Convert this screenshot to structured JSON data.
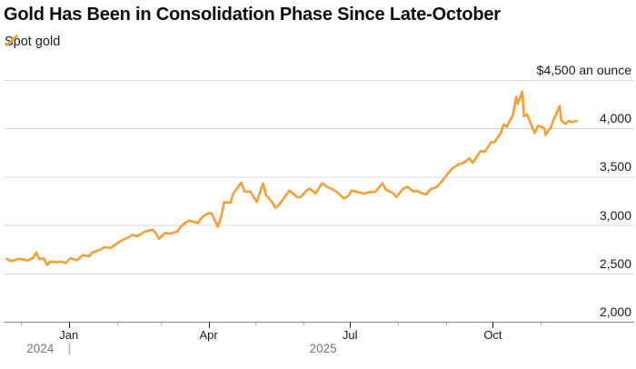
{
  "header": {
    "title": "Gold Has Been in Consolidation Phase Since Late-October",
    "legend": {
      "label": "Spot gold"
    }
  },
  "colors": {
    "line": "#F79E34",
    "gridline": "#d9d9d9",
    "baseline": "#8a8a8a",
    "minor_tick": "#b3b3b3",
    "major_tick": "#1a1a1a",
    "year_divider": "#b3b3b3",
    "title_text": "#0d0d0d",
    "axis_text": "#1a1a1a",
    "year_text": "#757575"
  },
  "chart_data": {
    "type": "line",
    "title": "Gold Has Been in Consolidation Phase Since Late-October",
    "unit_label": "$4,500 an ounce",
    "ylim": [
      2000,
      4500
    ],
    "grid": true,
    "legend_position": "top-left",
    "y_ticks": [
      {
        "value": 4500,
        "label": "$4,500 an ounce"
      },
      {
        "value": 4000,
        "label": "4,000"
      },
      {
        "value": 3500,
        "label": "3,500"
      },
      {
        "value": 3000,
        "label": "3,000"
      },
      {
        "value": 2500,
        "label": "2,500"
      },
      {
        "value": 2000,
        "label": "2,000"
      }
    ],
    "x_axis": {
      "start": "2024-11-20",
      "end": "2025-12-31"
    },
    "x_ticks": [
      {
        "date": "2024-12-01",
        "label": "",
        "major": false
      },
      {
        "date": "2025-01-01",
        "label": "Jan",
        "major": true
      },
      {
        "date": "2025-02-01",
        "label": "",
        "major": false
      },
      {
        "date": "2025-03-01",
        "label": "",
        "major": false
      },
      {
        "date": "2025-04-01",
        "label": "Apr",
        "major": true
      },
      {
        "date": "2025-05-01",
        "label": "",
        "major": false
      },
      {
        "date": "2025-06-01",
        "label": "",
        "major": false
      },
      {
        "date": "2025-07-01",
        "label": "Jul",
        "major": true
      },
      {
        "date": "2025-08-01",
        "label": "",
        "major": false
      },
      {
        "date": "2025-09-01",
        "label": "",
        "major": false
      },
      {
        "date": "2025-10-01",
        "label": "Oct",
        "major": true
      },
      {
        "date": "2025-11-01",
        "label": "",
        "major": false
      }
    ],
    "year_boundary": "2025-01-01",
    "year_labels": [
      "2024",
      "2025"
    ],
    "series": [
      {
        "name": "Spot gold",
        "color": "#F79E34",
        "points": [
          [
            "2024-11-22",
            2650
          ],
          [
            "2024-11-25",
            2626
          ],
          [
            "2024-11-27",
            2635
          ],
          [
            "2024-11-29",
            2650
          ],
          [
            "2024-12-03",
            2643
          ],
          [
            "2024-12-05",
            2632
          ],
          [
            "2024-12-09",
            2660
          ],
          [
            "2024-12-11",
            2718
          ],
          [
            "2024-12-13",
            2648
          ],
          [
            "2024-12-16",
            2653
          ],
          [
            "2024-12-18",
            2586
          ],
          [
            "2024-12-20",
            2622
          ],
          [
            "2024-12-24",
            2616
          ],
          [
            "2024-12-27",
            2621
          ],
          [
            "2024-12-30",
            2606
          ],
          [
            "2025-01-02",
            2658
          ],
          [
            "2025-01-06",
            2636
          ],
          [
            "2025-01-08",
            2662
          ],
          [
            "2025-01-10",
            2690
          ],
          [
            "2025-01-14",
            2677
          ],
          [
            "2025-01-16",
            2714
          ],
          [
            "2025-01-21",
            2744
          ],
          [
            "2025-01-24",
            2771
          ],
          [
            "2025-01-28",
            2763
          ],
          [
            "2025-01-31",
            2798
          ],
          [
            "2025-02-04",
            2842
          ],
          [
            "2025-02-07",
            2861
          ],
          [
            "2025-02-11",
            2898
          ],
          [
            "2025-02-14",
            2883
          ],
          [
            "2025-02-19",
            2933
          ],
          [
            "2025-02-24",
            2951
          ],
          [
            "2025-02-26",
            2916
          ],
          [
            "2025-02-28",
            2857
          ],
          [
            "2025-03-04",
            2918
          ],
          [
            "2025-03-07",
            2910
          ],
          [
            "2025-03-12",
            2934
          ],
          [
            "2025-03-14",
            2984
          ],
          [
            "2025-03-18",
            3035
          ],
          [
            "2025-03-20",
            3044
          ],
          [
            "2025-03-25",
            3020
          ],
          [
            "2025-03-28",
            3085
          ],
          [
            "2025-04-01",
            3124
          ],
          [
            "2025-04-03",
            3115
          ],
          [
            "2025-04-07",
            2982
          ],
          [
            "2025-04-09",
            3083
          ],
          [
            "2025-04-11",
            3238
          ],
          [
            "2025-04-15",
            3230
          ],
          [
            "2025-04-17",
            3327
          ],
          [
            "2025-04-22",
            3440
          ],
          [
            "2025-04-24",
            3349
          ],
          [
            "2025-04-28",
            3343
          ],
          [
            "2025-04-30",
            3289
          ],
          [
            "2025-05-02",
            3240
          ],
          [
            "2025-05-06",
            3431
          ],
          [
            "2025-05-08",
            3306
          ],
          [
            "2025-05-12",
            3236
          ],
          [
            "2025-05-14",
            3178
          ],
          [
            "2025-05-16",
            3203
          ],
          [
            "2025-05-20",
            3290
          ],
          [
            "2025-05-23",
            3357
          ],
          [
            "2025-05-28",
            3288
          ],
          [
            "2025-05-30",
            3289
          ],
          [
            "2025-06-03",
            3353
          ],
          [
            "2025-06-05",
            3376
          ],
          [
            "2025-06-09",
            3327
          ],
          [
            "2025-06-13",
            3432
          ],
          [
            "2025-06-17",
            3388
          ],
          [
            "2025-06-20",
            3368
          ],
          [
            "2025-06-24",
            3323
          ],
          [
            "2025-06-27",
            3274
          ],
          [
            "2025-06-30",
            3303
          ],
          [
            "2025-07-02",
            3357
          ],
          [
            "2025-07-07",
            3337
          ],
          [
            "2025-07-10",
            3324
          ],
          [
            "2025-07-14",
            3343
          ],
          [
            "2025-07-17",
            3339
          ],
          [
            "2025-07-22",
            3430
          ],
          [
            "2025-07-24",
            3368
          ],
          [
            "2025-07-29",
            3326
          ],
          [
            "2025-07-31",
            3290
          ],
          [
            "2025-08-04",
            3373
          ],
          [
            "2025-08-07",
            3397
          ],
          [
            "2025-08-11",
            3344
          ],
          [
            "2025-08-13",
            3355
          ],
          [
            "2025-08-15",
            3336
          ],
          [
            "2025-08-19",
            3316
          ],
          [
            "2025-08-22",
            3372
          ],
          [
            "2025-08-26",
            3393
          ],
          [
            "2025-08-29",
            3448
          ],
          [
            "2025-09-02",
            3533
          ],
          [
            "2025-09-05",
            3587
          ],
          [
            "2025-09-09",
            3627
          ],
          [
            "2025-09-12",
            3643
          ],
          [
            "2025-09-16",
            3690
          ],
          [
            "2025-09-18",
            3644
          ],
          [
            "2025-09-23",
            3764
          ],
          [
            "2025-09-26",
            3760
          ],
          [
            "2025-09-30",
            3858
          ],
          [
            "2025-10-02",
            3857
          ],
          [
            "2025-10-06",
            3949
          ],
          [
            "2025-10-08",
            4041
          ],
          [
            "2025-10-10",
            4018
          ],
          [
            "2025-10-14",
            4142
          ],
          [
            "2025-10-16",
            4326
          ],
          [
            "2025-10-17",
            4251
          ],
          [
            "2025-10-20",
            4381
          ],
          [
            "2025-10-21",
            4125
          ],
          [
            "2025-10-23",
            4145
          ],
          [
            "2025-10-27",
            3985
          ],
          [
            "2025-10-28",
            3951
          ],
          [
            "2025-10-30",
            4025
          ],
          [
            "2025-11-03",
            4006
          ],
          [
            "2025-11-04",
            3931
          ],
          [
            "2025-11-06",
            3982
          ],
          [
            "2025-11-07",
            4000
          ],
          [
            "2025-11-10",
            4122
          ],
          [
            "2025-11-12",
            4194
          ],
          [
            "2025-11-13",
            4231
          ],
          [
            "2025-11-14",
            4082
          ],
          [
            "2025-11-17",
            4046
          ],
          [
            "2025-11-19",
            4078
          ],
          [
            "2025-11-21",
            4065
          ],
          [
            "2025-11-24",
            4078
          ]
        ]
      }
    ]
  }
}
